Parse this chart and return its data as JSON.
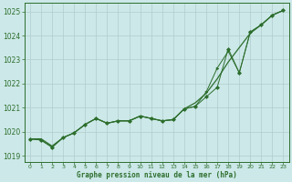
{
  "xlabel": "Graphe pression niveau de la mer (hPa)",
  "hours": [
    0,
    1,
    2,
    3,
    4,
    5,
    6,
    7,
    8,
    9,
    10,
    11,
    12,
    13,
    14,
    15,
    16,
    17,
    18,
    19,
    20,
    21,
    22,
    23
  ],
  "line_smooth": [
    1019.7,
    1019.7,
    1019.4,
    1019.75,
    1019.95,
    1020.3,
    1020.55,
    1020.35,
    1020.45,
    1020.45,
    1020.65,
    1020.55,
    1020.45,
    1020.5,
    1020.95,
    1021.2,
    1021.6,
    1022.2,
    1022.9,
    1023.5,
    1024.1,
    1024.45,
    1024.85,
    1025.05
  ],
  "line_diamond": [
    1019.7,
    1019.65,
    1019.35,
    1019.75,
    1019.95,
    1020.3,
    1020.55,
    1020.35,
    1020.45,
    1020.45,
    1020.65,
    1020.55,
    1020.45,
    1020.5,
    1020.95,
    1021.05,
    1021.45,
    1021.85,
    1023.45,
    1022.45,
    1024.15,
    1024.45,
    1024.85,
    1025.05
  ],
  "line_arrow": [
    1019.7,
    1019.65,
    1019.35,
    1019.75,
    1019.95,
    1020.3,
    1020.55,
    1020.35,
    1020.45,
    1020.45,
    1020.65,
    1020.55,
    1020.45,
    1020.5,
    1020.95,
    1021.05,
    1021.65,
    1022.65,
    1023.35,
    1022.45,
    1024.15,
    1024.45,
    1024.85,
    1025.05
  ],
  "ylim": [
    1018.75,
    1025.35
  ],
  "xlim": [
    -0.5,
    23.5
  ],
  "yticks": [
    1019,
    1020,
    1021,
    1022,
    1023,
    1024,
    1025
  ],
  "bg_color": "#cce8e8",
  "grid_color": "#b0cccc",
  "line_color": "#2d6e2d",
  "figsize": [
    3.2,
    2.0
  ],
  "dpi": 100
}
